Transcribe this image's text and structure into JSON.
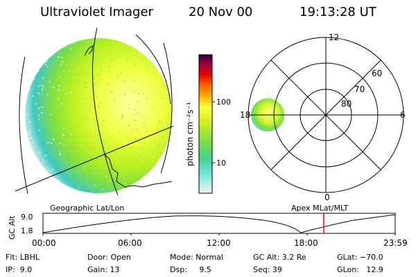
{
  "header": {
    "instrument": "Ultraviolet Imager",
    "date": "20 Nov 00",
    "time": "19:13:28 UT"
  },
  "colorbar": {
    "label": "photon cm⁻²s⁻¹",
    "ticks": [
      "100",
      "10"
    ]
  },
  "polar": {
    "mlt_labels": {
      "top": "12",
      "left": "18",
      "right": "6",
      "bottom": "0"
    },
    "lat_labels": [
      "60",
      "70",
      "80"
    ]
  },
  "panel_labels": {
    "geographic": "Geographic Lat/Lon",
    "apex": "Apex MLat/MLT"
  },
  "orbit": {
    "ylabel": "GC Alt",
    "ymax_label": "9.0",
    "ymin_label": "1.8",
    "times": [
      "00:00",
      "06:00",
      "12:00",
      "18:00",
      "23:59"
    ],
    "marker_color": "#ff0000"
  },
  "footer": {
    "flt": "Flt: LBHL",
    "ip": "IP:  9.0",
    "door": "Door: Open",
    "gain": "Gain: 13",
    "mode": "Mode: Normal",
    "dsp": "Dsp:     9.5",
    "gcalt": "GC Alt: 3.2 Re",
    "seq": "Seq: 39",
    "glat": "GLat: −70.0",
    "glon": "GLon:   12.9"
  }
}
